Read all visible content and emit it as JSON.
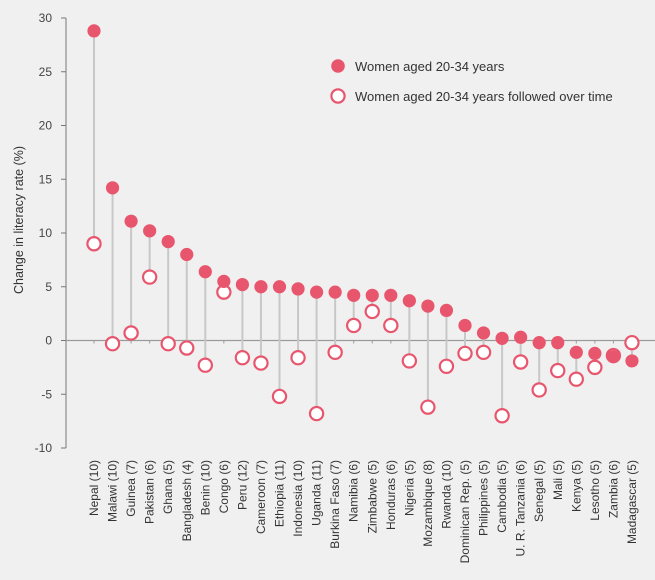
{
  "chart_data": {
    "type": "scatter",
    "ylabel": "Change in literacy rate (%)",
    "xlabel": "",
    "ylim": [
      -10,
      30
    ],
    "yticks": [
      30,
      25,
      20,
      15,
      10,
      5,
      0,
      -5,
      -10
    ],
    "grid": false,
    "legend_position": "top-right",
    "colors": {
      "series1": "#e8566e",
      "series2": "#e8566e",
      "connector": "#c8c8c8",
      "zero_line": "#9a9a9a"
    },
    "categories": [
      "Nepal (10)",
      "Malawi (10)",
      "Guinea (7)",
      "Pakistan (6)",
      "Ghana (5)",
      "Bangladesh (4)",
      "Benin (10)",
      "Congo (6)",
      "Peru (12)",
      "Cameroon (7)",
      "Ethiopia (11)",
      "Indonesia (10)",
      "Uganda (11)",
      "Burkina Faso (7)",
      "Namibia (6)",
      "Zimbabwe (5)",
      "Honduras (6)",
      "Nigeria (5)",
      "Mozambique (8)",
      "Rwanda (10)",
      "Dominican Rep. (5)",
      "Philippines (5)",
      "Cambodia (5)",
      "U. R. Tanzania (6)",
      "Senegal (5)",
      "Mali (5)",
      "Kenya (5)",
      "Lesotho (5)",
      "Zambia (6)",
      "Madagascar (5)"
    ],
    "series": [
      {
        "name": "Women aged 20-34 years",
        "marker": "filled-circle",
        "values": [
          28.8,
          14.2,
          11.1,
          10.2,
          9.2,
          8.0,
          6.4,
          5.5,
          5.2,
          5.0,
          5.0,
          4.8,
          4.5,
          4.5,
          4.2,
          4.2,
          4.2,
          3.7,
          3.2,
          2.8,
          1.4,
          0.7,
          0.2,
          0.3,
          -0.2,
          -0.2,
          -1.1,
          -1.2,
          -1.5,
          -1.9
        ]
      },
      {
        "name": "Women aged 20-34 years followed over time",
        "marker": "hollow-circle",
        "values": [
          9.0,
          -0.3,
          0.7,
          5.9,
          -0.3,
          -0.7,
          -2.3,
          4.5,
          -1.6,
          -2.1,
          -5.2,
          -1.6,
          -6.8,
          -1.1,
          1.4,
          2.7,
          1.4,
          -1.9,
          -6.2,
          -2.4,
          -1.2,
          -1.1,
          -7.0,
          -2.0,
          -4.6,
          -2.8,
          -3.6,
          -2.5,
          -1.4,
          -0.2
        ]
      }
    ]
  }
}
